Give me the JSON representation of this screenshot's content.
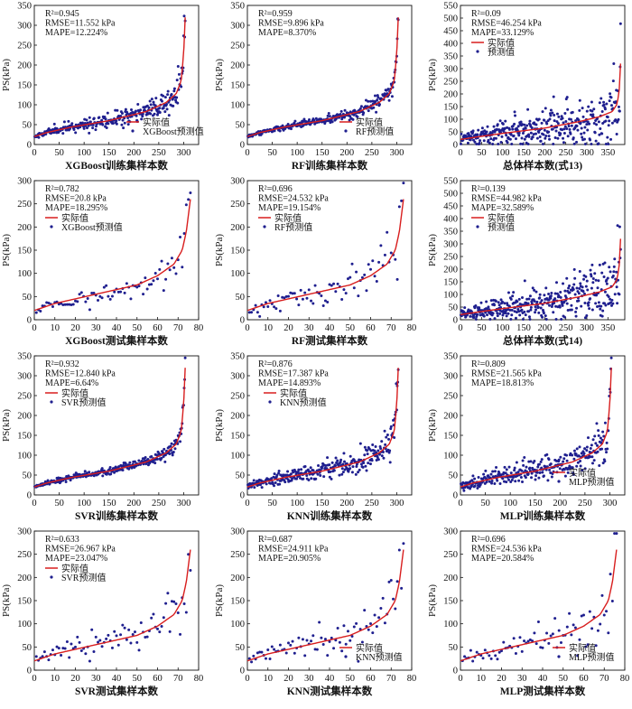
{
  "figure": {
    "legend_actual": "实际值",
    "series_colors": {
      "actual": "#d81e1e",
      "predicted": "#1f1f8f"
    }
  },
  "chart_data": [
    {
      "id": "xgb-train",
      "type": "scatter",
      "xlabel": "XGBoost训练集样本数",
      "ylabel": "PS(kPa)",
      "xlim": [
        0,
        330
      ],
      "xticks": [
        0,
        50,
        100,
        150,
        200,
        250,
        300
      ],
      "ylim": [
        0,
        350
      ],
      "yticks": [
        0,
        50,
        100,
        150,
        200,
        250,
        300,
        350
      ],
      "metrics": [
        "R²=0.945",
        "RMSE=11.552 kPa",
        "MAPE=12.224%"
      ],
      "legend": [
        "实际值",
        "XGBoost预测值"
      ],
      "legend_pos": "bottom-right",
      "n": 300,
      "curve": [
        [
          0,
          20
        ],
        [
          25,
          30
        ],
        [
          75,
          44
        ],
        [
          150,
          60
        ],
        [
          225,
          83
        ],
        [
          265,
          106
        ],
        [
          285,
          128
        ],
        [
          295,
          160
        ],
        [
          300,
          230
        ],
        [
          303,
          320
        ]
      ],
      "noise": 0.14,
      "seed": 11
    },
    {
      "id": "rf-train",
      "type": "scatter",
      "xlabel": "RF训练集样本数",
      "ylabel": "PS(kPa)",
      "xlim": [
        0,
        330
      ],
      "xticks": [
        0,
        50,
        100,
        150,
        200,
        250,
        300
      ],
      "ylim": [
        0,
        350
      ],
      "yticks": [
        0,
        50,
        100,
        150,
        200,
        250,
        300,
        350
      ],
      "metrics": [
        "R²=0.959",
        "RMSE=9.896 kPa",
        "MAPE=8.370%"
      ],
      "legend": [
        "实际值",
        "RF预测值"
      ],
      "legend_pos": "bottom-right",
      "n": 300,
      "curve": [
        [
          0,
          20
        ],
        [
          25,
          30
        ],
        [
          75,
          44
        ],
        [
          150,
          60
        ],
        [
          225,
          83
        ],
        [
          265,
          106
        ],
        [
          285,
          128
        ],
        [
          295,
          160
        ],
        [
          300,
          230
        ],
        [
          303,
          320
        ]
      ],
      "noise": 0.08,
      "seed": 12
    },
    {
      "id": "all-13",
      "type": "scatter",
      "xlabel": "总体样本数(式13)",
      "ylabel": "PS(kPa)",
      "xlim": [
        0,
        390
      ],
      "xticks": [
        0,
        50,
        100,
        150,
        200,
        250,
        300,
        350
      ],
      "ylim": [
        0,
        550
      ],
      "yticks": [
        0,
        50,
        100,
        150,
        200,
        250,
        300,
        350,
        400,
        450,
        500,
        550
      ],
      "metrics": [
        "R²=0.09",
        "RMSE=46.254 kPa",
        "MAPE=33.129%"
      ],
      "legend": [
        "实际值",
        "预测值"
      ],
      "legend_pos": "top-left",
      "n": 378,
      "curve": [
        [
          0,
          20
        ],
        [
          40,
          30
        ],
        [
          100,
          44
        ],
        [
          200,
          65
        ],
        [
          280,
          90
        ],
        [
          330,
          110
        ],
        [
          360,
          130
        ],
        [
          372,
          160
        ],
        [
          378,
          230
        ],
        [
          380,
          320
        ]
      ],
      "noise": 0.55,
      "seed": 13
    },
    {
      "id": "xgb-test",
      "type": "scatter",
      "xlabel": "XGBoost测试集样本数",
      "ylabel": "PS(kPa)",
      "xlim": [
        0,
        80
      ],
      "xticks": [
        0,
        10,
        20,
        30,
        40,
        50,
        60,
        70,
        80
      ],
      "ylim": [
        0,
        300
      ],
      "yticks": [
        0,
        50,
        100,
        150,
        200,
        250,
        300
      ],
      "metrics": [
        "R²=0.782",
        "RMSE=20.8 kPa",
        "MAPE=18.295%"
      ],
      "legend": [
        "实际值",
        "XGBoost预测值"
      ],
      "legend_pos": "top-left",
      "n": 76,
      "curve": [
        [
          0,
          20
        ],
        [
          10,
          35
        ],
        [
          30,
          55
        ],
        [
          50,
          75
        ],
        [
          60,
          95
        ],
        [
          68,
          120
        ],
        [
          72,
          150
        ],
        [
          74,
          190
        ],
        [
          76,
          260
        ]
      ],
      "noise": 0.18,
      "seed": 14
    },
    {
      "id": "rf-test",
      "type": "scatter",
      "xlabel": "RF测试集样本数",
      "ylabel": "PS(kPa)",
      "xlim": [
        0,
        80
      ],
      "xticks": [
        0,
        10,
        20,
        30,
        40,
        50,
        60,
        70,
        80
      ],
      "ylim": [
        0,
        300
      ],
      "yticks": [
        0,
        50,
        100,
        150,
        200,
        250,
        300
      ],
      "metrics": [
        "R²=0.696",
        "RMSE=24.532 kPa",
        "MAPE=19.154%"
      ],
      "legend": [
        "实际值",
        "RF预测值"
      ],
      "legend_pos": "top-left",
      "n": 76,
      "curve": [
        [
          0,
          20
        ],
        [
          10,
          35
        ],
        [
          30,
          55
        ],
        [
          50,
          75
        ],
        [
          60,
          95
        ],
        [
          68,
          120
        ],
        [
          72,
          150
        ],
        [
          74,
          190
        ],
        [
          76,
          260
        ]
      ],
      "noise": 0.24,
      "seed": 15
    },
    {
      "id": "all-14",
      "type": "scatter",
      "xlabel": "总体样本数(式14)",
      "ylabel": "PS(kPa)",
      "xlim": [
        0,
        390
      ],
      "xticks": [
        0,
        50,
        100,
        150,
        200,
        250,
        300,
        350
      ],
      "ylim": [
        0,
        550
      ],
      "yticks": [
        0,
        50,
        100,
        150,
        200,
        250,
        300,
        350,
        400,
        450,
        500,
        550
      ],
      "metrics": [
        "R²=0.139",
        "RMSE=44.982 kPa",
        "MAPE=32.589%"
      ],
      "legend": [
        "实际值",
        "预测值"
      ],
      "legend_pos": "top-left",
      "n": 378,
      "curve": [
        [
          0,
          20
        ],
        [
          40,
          30
        ],
        [
          100,
          44
        ],
        [
          200,
          65
        ],
        [
          280,
          90
        ],
        [
          330,
          110
        ],
        [
          360,
          130
        ],
        [
          372,
          160
        ],
        [
          378,
          230
        ],
        [
          380,
          320
        ]
      ],
      "noise": 0.5,
      "seed": 16
    },
    {
      "id": "svr-train",
      "type": "scatter",
      "xlabel": "SVR训练集样本数",
      "ylabel": "PS(kPa)",
      "xlim": [
        0,
        330
      ],
      "xticks": [
        0,
        50,
        100,
        150,
        200,
        250,
        300
      ],
      "ylim": [
        0,
        350
      ],
      "yticks": [
        0,
        50,
        100,
        150,
        200,
        250,
        300,
        350
      ],
      "metrics": [
        "R²=0.932",
        "RMSE=12.840 kPa",
        "MAPE=6.64%"
      ],
      "legend": [
        "实际值",
        "SVR预测值"
      ],
      "legend_pos": "top-left",
      "n": 300,
      "curve": [
        [
          0,
          20
        ],
        [
          25,
          30
        ],
        [
          75,
          44
        ],
        [
          150,
          60
        ],
        [
          225,
          83
        ],
        [
          265,
          106
        ],
        [
          285,
          128
        ],
        [
          295,
          160
        ],
        [
          300,
          230
        ],
        [
          303,
          320
        ]
      ],
      "noise": 0.07,
      "seed": 17
    },
    {
      "id": "knn-train",
      "type": "scatter",
      "xlabel": "KNN训练集样本数",
      "ylabel": "PS(kPa)",
      "xlim": [
        0,
        330
      ],
      "xticks": [
        0,
        50,
        100,
        150,
        200,
        250,
        300
      ],
      "ylim": [
        0,
        350
      ],
      "yticks": [
        0,
        50,
        100,
        150,
        200,
        250,
        300,
        350
      ],
      "metrics": [
        "R²=0.876",
        "RMSE=17.387 kPa",
        "MAPE=14.893%"
      ],
      "legend": [
        "实际值",
        "KNN预测值"
      ],
      "legend_pos": "top-center",
      "n": 300,
      "curve": [
        [
          0,
          20
        ],
        [
          25,
          30
        ],
        [
          75,
          44
        ],
        [
          150,
          60
        ],
        [
          225,
          83
        ],
        [
          265,
          106
        ],
        [
          285,
          128
        ],
        [
          295,
          160
        ],
        [
          300,
          230
        ],
        [
          303,
          320
        ]
      ],
      "noise": 0.17,
      "seed": 18
    },
    {
      "id": "mlp-train",
      "type": "scatter",
      "xlabel": "MLP训练集样本数",
      "ylabel": "PS(kPa)",
      "xlim": [
        0,
        330
      ],
      "xticks": [
        0,
        50,
        100,
        150,
        200,
        250,
        300
      ],
      "ylim": [
        0,
        350
      ],
      "yticks": [
        0,
        50,
        100,
        150,
        200,
        250,
        300,
        350
      ],
      "metrics": [
        "R²=0.809",
        "RMSE=21.565 kPa",
        "MAPE=18.813%"
      ],
      "legend": [
        "实际值",
        "MLP预测值"
      ],
      "legend_pos": "bottom-right",
      "n": 300,
      "curve": [
        [
          0,
          20
        ],
        [
          25,
          30
        ],
        [
          75,
          44
        ],
        [
          150,
          60
        ],
        [
          225,
          83
        ],
        [
          265,
          106
        ],
        [
          285,
          128
        ],
        [
          295,
          160
        ],
        [
          300,
          230
        ],
        [
          303,
          320
        ]
      ],
      "noise": 0.22,
      "seed": 19
    },
    {
      "id": "svr-test",
      "type": "scatter",
      "xlabel": "SVR测试集样本数",
      "ylabel": "PS(kPa)",
      "xlim": [
        0,
        80
      ],
      "xticks": [
        0,
        10,
        20,
        30,
        40,
        50,
        60,
        70,
        80
      ],
      "ylim": [
        0,
        300
      ],
      "yticks": [
        0,
        50,
        100,
        150,
        200,
        250,
        300
      ],
      "metrics": [
        "R²=0.633",
        "RMSE=26.967 kPa",
        "MAPE=23.047%"
      ],
      "legend": [
        "实际值",
        "SVR预测值"
      ],
      "legend_pos": "top-left",
      "n": 76,
      "curve": [
        [
          0,
          20
        ],
        [
          10,
          35
        ],
        [
          30,
          55
        ],
        [
          50,
          75
        ],
        [
          60,
          95
        ],
        [
          68,
          120
        ],
        [
          72,
          150
        ],
        [
          74,
          190
        ],
        [
          76,
          260
        ]
      ],
      "noise": 0.26,
      "seed": 20
    },
    {
      "id": "knn-test",
      "type": "scatter",
      "xlabel": "KNN测试集样本数",
      "ylabel": "PS(kPa)",
      "xlim": [
        0,
        80
      ],
      "xticks": [
        0,
        10,
        20,
        30,
        40,
        50,
        60,
        70,
        80
      ],
      "ylim": [
        0,
        300
      ],
      "yticks": [
        0,
        50,
        100,
        150,
        200,
        250,
        300
      ],
      "metrics": [
        "R²=0.687",
        "RMSE=24.911 kPa",
        "MAPE=20.905%"
      ],
      "legend": [
        "实际值",
        "KNN预测值"
      ],
      "legend_pos": "bottom-right",
      "n": 76,
      "curve": [
        [
          0,
          20
        ],
        [
          10,
          35
        ],
        [
          30,
          55
        ],
        [
          50,
          75
        ],
        [
          60,
          95
        ],
        [
          68,
          120
        ],
        [
          72,
          150
        ],
        [
          74,
          190
        ],
        [
          76,
          260
        ]
      ],
      "noise": 0.25,
      "seed": 21
    },
    {
      "id": "mlp-test",
      "type": "scatter",
      "xlabel": "MLP测试集样本数",
      "ylabel": "PS(kPa)",
      "xlim": [
        0,
        80
      ],
      "xticks": [
        0,
        10,
        20,
        30,
        40,
        50,
        60,
        70,
        80
      ],
      "ylim": [
        0,
        300
      ],
      "yticks": [
        0,
        50,
        100,
        150,
        200,
        250,
        300
      ],
      "metrics": [
        "R²=0.696",
        "RMSE=24.536 kPa",
        "MAPE=20.584%"
      ],
      "legend": [
        "实际值",
        "MLP预测值"
      ],
      "legend_pos": "bottom-right",
      "n": 76,
      "curve": [
        [
          0,
          20
        ],
        [
          10,
          35
        ],
        [
          30,
          55
        ],
        [
          50,
          75
        ],
        [
          60,
          95
        ],
        [
          68,
          120
        ],
        [
          72,
          150
        ],
        [
          74,
          190
        ],
        [
          76,
          260
        ]
      ],
      "noise": 0.24,
      "seed": 22
    }
  ]
}
